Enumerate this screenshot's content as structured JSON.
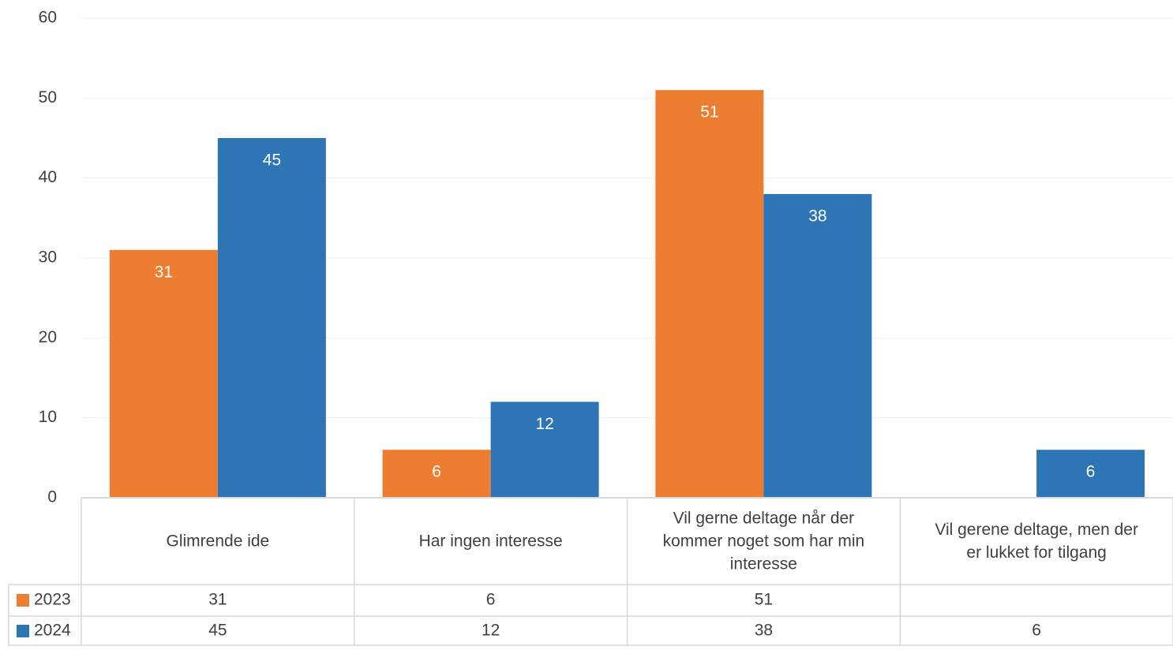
{
  "chart_data": {
    "type": "bar",
    "categories": [
      [
        "Glimrende ide"
      ],
      [
        "Har ingen interesse"
      ],
      [
        "Vil gerne deltage når der",
        "kommer noget som har min",
        "interesse"
      ],
      [
        "Vil gerene deltage, men der",
        "er lukket for tilgang"
      ]
    ],
    "series": [
      {
        "name": "2023",
        "values": [
          31,
          6,
          51,
          null
        ],
        "color": "#ED7D31"
      },
      {
        "name": "2024",
        "values": [
          45,
          12,
          38,
          6
        ],
        "color": "#2E75B6"
      }
    ],
    "ylim": [
      0,
      60
    ],
    "yticks": [
      0,
      10,
      20,
      30,
      40,
      50,
      60
    ],
    "grid": true,
    "data_labels": true,
    "data_table": true,
    "legend": "data-table-left"
  }
}
